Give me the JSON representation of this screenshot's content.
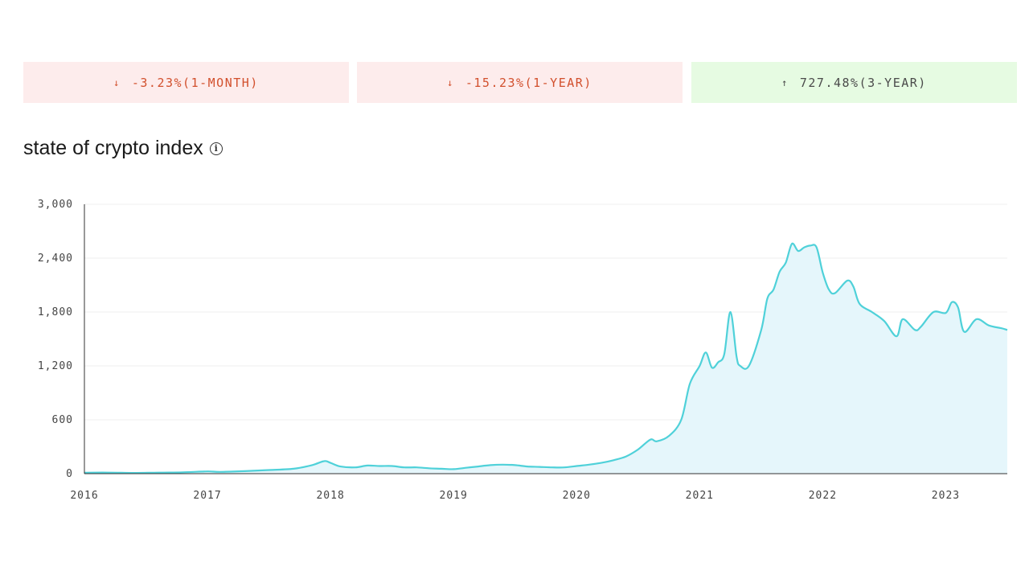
{
  "stats": [
    {
      "arrow": "↓",
      "text": "-3.23%(1-MONTH)",
      "direction": "down"
    },
    {
      "arrow": "↓",
      "text": "-15.23%(1-YEAR)",
      "direction": "down"
    },
    {
      "arrow": "↑",
      "text": "727.48%(3-YEAR)",
      "direction": "up"
    }
  ],
  "title": "state of crypto index",
  "info_icon": "info-circle-icon",
  "colors": {
    "line": "#4fd1d9",
    "fill": "#e5f6fb",
    "down_bg": "#fdecec",
    "down_text": "#d2502d",
    "up_bg": "#e6fbe2",
    "up_text": "#4b4b4b",
    "grid": "#efefef"
  },
  "chart_data": {
    "type": "area",
    "title": "state of crypto index",
    "xlabel": "",
    "ylabel": "",
    "xlim": [
      2016.0,
      2023.5
    ],
    "ylim": [
      0,
      3000
    ],
    "y_ticks": [
      0,
      600,
      1200,
      1800,
      2400,
      3000
    ],
    "y_tick_labels": [
      "0",
      "600",
      "1,200",
      "1,800",
      "2,400",
      "3,000"
    ],
    "x_ticks": [
      2016,
      2017,
      2018,
      2019,
      2020,
      2021,
      2022,
      2023
    ],
    "x_tick_labels": [
      "2016",
      "2017",
      "2018",
      "2019",
      "2020",
      "2021",
      "2022",
      "2023"
    ],
    "grid": true,
    "series": [
      {
        "x": [
          2016.0,
          2016.2,
          2016.4,
          2016.6,
          2016.8,
          2017.0,
          2017.1,
          2017.3,
          2017.5,
          2017.7,
          2017.85,
          2017.95,
          2018.0,
          2018.08,
          2018.2,
          2018.3,
          2018.4,
          2018.5,
          2018.6,
          2018.7,
          2018.8,
          2018.9,
          2019.0,
          2019.1,
          2019.2,
          2019.3,
          2019.4,
          2019.5,
          2019.6,
          2019.7,
          2019.8,
          2019.9,
          2020.0,
          2020.1,
          2020.2,
          2020.3,
          2020.4,
          2020.5,
          2020.6,
          2020.65,
          2020.75,
          2020.85,
          2020.92,
          2021.0,
          2021.05,
          2021.1,
          2021.15,
          2021.2,
          2021.25,
          2021.3,
          2021.33,
          2021.4,
          2021.5,
          2021.55,
          2021.6,
          2021.65,
          2021.7,
          2021.75,
          2021.8,
          2021.85,
          2021.9,
          2021.95,
          2022.0,
          2022.05,
          2022.1,
          2022.2,
          2022.25,
          2022.3,
          2022.4,
          2022.5,
          2022.6,
          2022.65,
          2022.75,
          2022.8,
          2022.9,
          2023.0,
          2023.05,
          2023.1,
          2023.15,
          2023.25,
          2023.35,
          2023.45,
          2023.5
        ],
        "y": [
          10,
          12,
          8,
          12,
          15,
          25,
          20,
          28,
          40,
          55,
          95,
          140,
          120,
          80,
          70,
          90,
          85,
          85,
          70,
          70,
          60,
          55,
          50,
          65,
          80,
          95,
          100,
          95,
          80,
          75,
          70,
          70,
          85,
          100,
          120,
          150,
          190,
          270,
          380,
          360,
          420,
          600,
          1000,
          1200,
          1350,
          1180,
          1240,
          1330,
          1800,
          1300,
          1200,
          1200,
          1600,
          1950,
          2050,
          2250,
          2350,
          2560,
          2480,
          2520,
          2540,
          2520,
          2240,
          2050,
          2010,
          2150,
          2080,
          1890,
          1800,
          1700,
          1530,
          1720,
          1600,
          1640,
          1800,
          1790,
          1910,
          1850,
          1580,
          1720,
          1650,
          1620,
          1600
        ]
      }
    ]
  }
}
